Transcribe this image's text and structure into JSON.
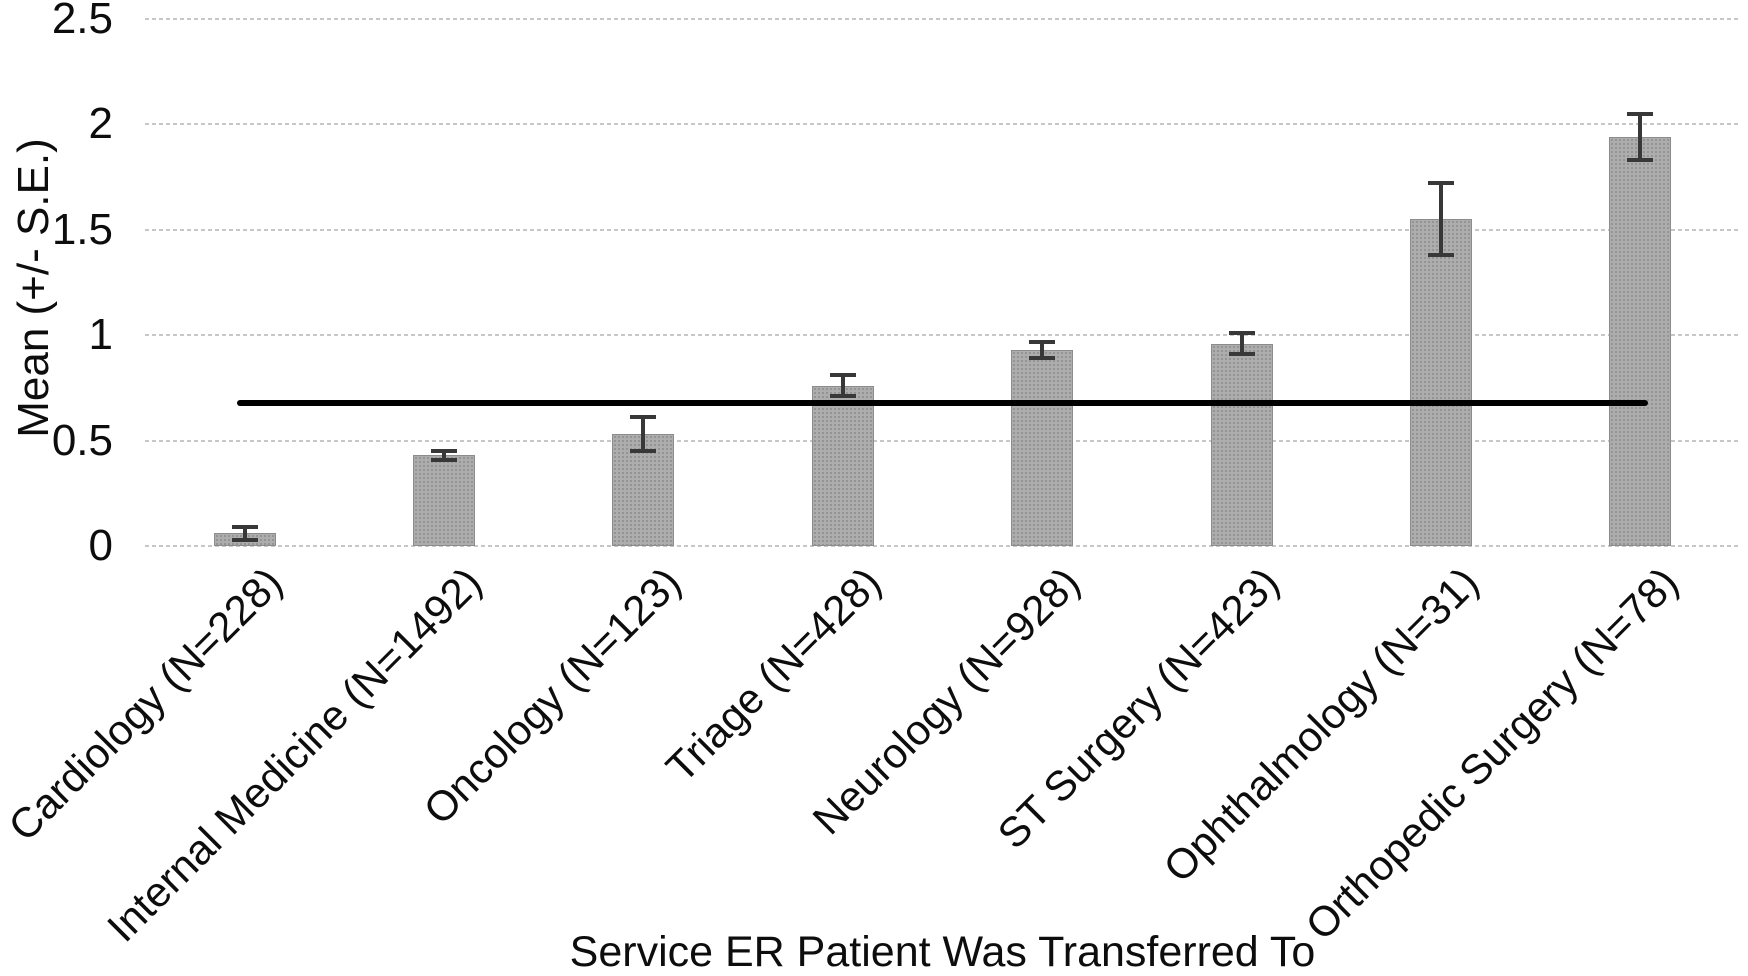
{
  "chart_data": {
    "type": "bar",
    "title": "",
    "xlabel": "Service ER Patient Was Transferred To",
    "ylabel": "Mean (+/- S.E.)",
    "ylim": [
      0,
      2.5
    ],
    "ytick_labels": [
      "0",
      "0.5",
      "1",
      "1.5",
      "2",
      "2.5"
    ],
    "ytick_values": [
      0,
      0.5,
      1,
      1.5,
      2,
      2.5
    ],
    "grid": "horizontal dotted gridlines",
    "legend_position": "none",
    "categories": [
      "Cardiology (N=228)",
      "Internal Medicine (N=1492)",
      "Oncology (N=123)",
      "Triage (N=428)",
      "Neurology (N=928)",
      "ST Surgery (N=423)",
      "Ophthalmology (N=31)",
      "Orthopedic Surgery (N=78)"
    ],
    "sample_sizes": [
      228,
      1492,
      123,
      428,
      928,
      423,
      31,
      78
    ],
    "series": [
      {
        "name": "Mean (+/- S.E.)",
        "values": [
          0.06,
          0.43,
          0.53,
          0.76,
          0.93,
          0.96,
          1.55,
          1.94
        ],
        "errors": [
          0.03,
          0.02,
          0.08,
          0.05,
          0.04,
          0.05,
          0.17,
          0.11
        ]
      }
    ],
    "reference_line": {
      "value": 0.68,
      "color": "#000000",
      "style": "solid thick",
      "span": "from first bar center to last bar center"
    }
  },
  "colors": {
    "background": "#ffffff",
    "bar_fill": "#a8a8a8",
    "bar_border": "#8c8c8c",
    "error_bar": "#383838",
    "gridline": "#c7c7c7",
    "reference_line": "#000000",
    "text": "#0d0d0d"
  }
}
